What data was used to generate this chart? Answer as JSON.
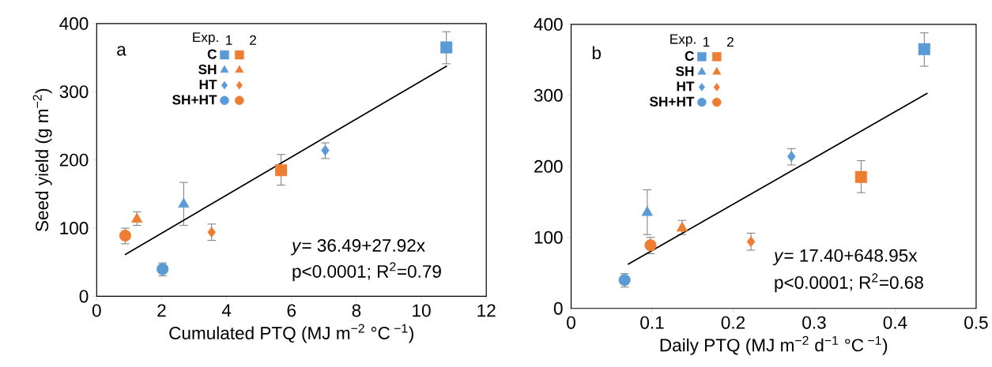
{
  "chart_data": [
    {
      "type": "scatter",
      "xlabel": "Cumulated PTQ (MJ m$^{−2}$ °C$^{ −1}$)",
      "ylabel": "Seed yield (g m$^{−2}$)",
      "xlim": [
        0,
        12
      ],
      "ylim": [
        0,
        400
      ],
      "xticks": [
        0,
        2,
        4,
        6,
        8,
        10,
        12
      ],
      "yticks": [
        0,
        100,
        200,
        300,
        400
      ],
      "legend": "top left",
      "legend_title": "Exp.",
      "annotations": [
        "a",
        "*y*= 36.49+27.92x",
        "p<0.0001; R$^{2}$=0.79",
        "1",
        "2"
      ],
      "series": [
        {
          "name": "C",
          "color": "#5b9bd5",
          "marker": "square",
          "x": [
            10.77
          ],
          "values": [
            365
          ],
          "errors": [
            [
              341,
              388
            ]
          ]
        },
        {
          "color": "#ed7d31",
          "marker": "square",
          "x": [
            5.68
          ],
          "values": [
            185
          ],
          "errors": [
            [
              163,
              208
            ]
          ]
        },
        {
          "name": "SH",
          "color": "#5b9bd5",
          "marker": "triangle",
          "x": [
            2.68
          ],
          "values": [
            135
          ],
          "errors": [
            [
              104,
              167
            ]
          ]
        },
        {
          "color": "#ed7d31",
          "marker": "triangle",
          "x": [
            1.24
          ],
          "values": [
            113
          ],
          "errors": [
            [
              104,
              124
            ]
          ]
        },
        {
          "name": "HT",
          "color": "#5b9bd5",
          "marker": "diamond",
          "x": [
            7.04
          ],
          "values": [
            214
          ],
          "errors": [
            [
              202,
              225
            ]
          ]
        },
        {
          "color": "#ed7d31",
          "marker": "diamond",
          "x": [
            3.54
          ],
          "values": [
            94
          ],
          "errors": [
            [
              82,
              106
            ]
          ]
        },
        {
          "name": "SH+HT",
          "color": "#5b9bd5",
          "marker": "circle",
          "x": [
            2.03
          ],
          "values": [
            40
          ],
          "errors": [
            [
              30,
              49
            ]
          ]
        },
        {
          "color": "#ed7d31",
          "marker": "circle",
          "x": [
            0.88
          ],
          "values": [
            89
          ],
          "errors": [
            [
              77,
              100
            ]
          ]
        },
        {
          "type": "line",
          "color": "#000000",
          "marker": "none",
          "x": [
            0.87,
            10.79
          ],
          "values": [
            61,
            338
          ]
        }
      ]
    },
    {
      "type": "scatter",
      "xlabel": "Daily PTQ (MJ m$^{−2}$ d$^{−1}$ °C$^{ −1}$)",
      "xlim": [
        0,
        0.5
      ],
      "ylim": [
        0,
        400
      ],
      "xticks": [
        0,
        0.1,
        0.2,
        0.3,
        0.4,
        0.5
      ],
      "yticks": [
        0,
        100,
        200,
        300,
        400
      ],
      "legend": "top left",
      "legend_title": "Exp.",
      "annotations": [
        "b",
        "*y*= 17.40+648.95x",
        "p<0.0001; R$^{2}$=0.68",
        "1",
        "2"
      ],
      "series": [
        {
          "name": "C",
          "color": "#5b9bd5",
          "marker": "square",
          "x": [
            0.436
          ],
          "values": [
            365
          ],
          "errors": [
            [
              341,
              388
            ]
          ]
        },
        {
          "color": "#ed7d31",
          "marker": "square",
          "x": [
            0.358
          ],
          "values": [
            185
          ],
          "errors": [
            [
              163,
              208
            ]
          ]
        },
        {
          "name": "SH",
          "color": "#5b9bd5",
          "marker": "triangle",
          "x": [
            0.094
          ],
          "values": [
            135
          ],
          "errors": [
            [
              104,
              167
            ]
          ]
        },
        {
          "color": "#ed7d31",
          "marker": "triangle",
          "x": [
            0.137
          ],
          "values": [
            113
          ],
          "errors": [
            [
              104,
              124
            ]
          ]
        },
        {
          "name": "HT",
          "color": "#5b9bd5",
          "marker": "diamond",
          "x": [
            0.272
          ],
          "values": [
            214
          ],
          "errors": [
            [
              202,
              225
            ]
          ]
        },
        {
          "color": "#ed7d31",
          "marker": "diamond",
          "x": [
            0.222
          ],
          "values": [
            94
          ],
          "errors": [
            [
              82,
              106
            ]
          ]
        },
        {
          "name": "SH+HT",
          "color": "#5b9bd5",
          "marker": "circle",
          "x": [
            0.066
          ],
          "values": [
            40
          ],
          "errors": [
            [
              30,
              49
            ]
          ]
        },
        {
          "color": "#ed7d31",
          "marker": "circle",
          "x": [
            0.098
          ],
          "values": [
            89
          ],
          "errors": [
            [
              77,
              100
            ]
          ]
        },
        {
          "type": "line",
          "color": "#000000",
          "marker": "none",
          "x": [
            0.07,
            0.44
          ],
          "values": [
            62,
            303
          ]
        }
      ]
    }
  ]
}
